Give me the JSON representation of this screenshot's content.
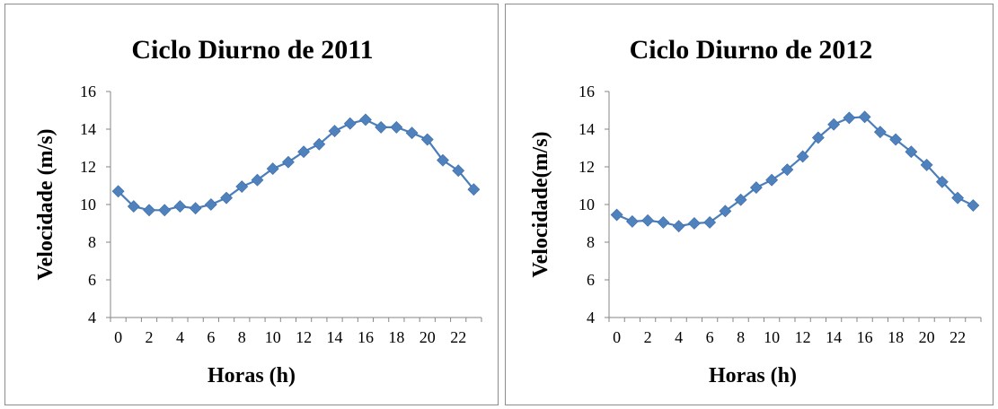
{
  "chart_data": [
    {
      "type": "line",
      "title": "Ciclo Diurno de 2011",
      "xlabel": "Horas (h)",
      "ylabel": "Velocidade (m/s)",
      "ylim": [
        4,
        16
      ],
      "yticks": [
        "4",
        "6",
        "8",
        "10",
        "12",
        "14",
        "16"
      ],
      "xticks": [
        "0",
        "2",
        "4",
        "6",
        "8",
        "10",
        "12",
        "14",
        "16",
        "18",
        "20",
        "22"
      ],
      "x": [
        0,
        1,
        2,
        3,
        4,
        5,
        6,
        7,
        8,
        9,
        10,
        11,
        12,
        13,
        14,
        15,
        16,
        17,
        18,
        19,
        20,
        21,
        22,
        23
      ],
      "series": [
        {
          "values": [
            10.7,
            9.9,
            9.7,
            9.7,
            9.9,
            9.8,
            10.0,
            10.35,
            10.95,
            11.3,
            11.9,
            12.25,
            12.8,
            13.2,
            13.9,
            14.3,
            14.5,
            14.1,
            14.1,
            13.8,
            13.45,
            12.35,
            11.8,
            10.8
          ],
          "color": "#4f81bd",
          "marker": "diamond"
        }
      ],
      "grid": false,
      "legend": "none"
    },
    {
      "type": "line",
      "title": "Ciclo Diurno de 2012",
      "xlabel": "Horas (h)",
      "ylabel": "Velocidade(m/s)",
      "ylim": [
        4,
        16
      ],
      "yticks": [
        "4",
        "6",
        "8",
        "10",
        "12",
        "14",
        "16"
      ],
      "xticks": [
        "0",
        "2",
        "4",
        "6",
        "8",
        "10",
        "12",
        "14",
        "16",
        "18",
        "20",
        "22"
      ],
      "x": [
        0,
        1,
        2,
        3,
        4,
        5,
        6,
        7,
        8,
        9,
        10,
        11,
        12,
        13,
        14,
        15,
        16,
        17,
        18,
        19,
        20,
        21,
        22,
        23
      ],
      "series": [
        {
          "values": [
            9.45,
            9.1,
            9.15,
            9.05,
            8.85,
            9.0,
            9.05,
            9.65,
            10.25,
            10.9,
            11.3,
            11.85,
            12.55,
            13.55,
            14.25,
            14.6,
            14.65,
            13.85,
            13.45,
            12.8,
            12.1,
            11.2,
            10.35,
            9.95
          ],
          "color": "#4f81bd",
          "marker": "diamond"
        }
      ],
      "grid": false,
      "legend": "none"
    }
  ]
}
